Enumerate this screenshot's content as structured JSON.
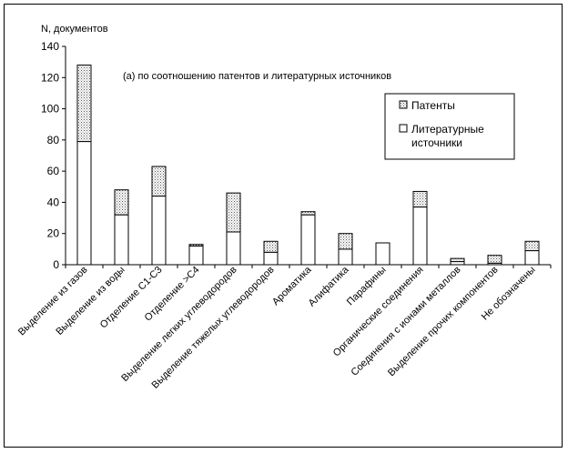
{
  "chart_data": {
    "type": "bar",
    "stacked": true,
    "title": "(а) по соотношению патентов и литературных источников",
    "ylabel": "N, документов",
    "xlabel": "",
    "ylim": [
      0,
      140
    ],
    "yticks": [
      0,
      20,
      40,
      60,
      80,
      100,
      120,
      140
    ],
    "grid": false,
    "legend_position": "right",
    "categories": [
      "Выделение из газов",
      "Выделение из воды",
      "Отделение С1-С3",
      "Отделение >С4",
      "Выделение легких углеводородов",
      "Выделение тяжелых углеводородов",
      "Ароматика",
      "Алифатика",
      "Парафины",
      "Органические соединения",
      "Соединения с ионами металлов",
      "Выделение прочих компонентов",
      "Не обозначены"
    ],
    "series": [
      {
        "name": "Литературные источники",
        "values": [
          79,
          32,
          44,
          12,
          21,
          8,
          32,
          10,
          14,
          37,
          2,
          1,
          9
        ],
        "pattern": "white"
      },
      {
        "name": "Патенты",
        "values": [
          49,
          16,
          19,
          1,
          25,
          7,
          2,
          10,
          0,
          10,
          2,
          5,
          6
        ],
        "pattern": "dotted"
      }
    ]
  }
}
